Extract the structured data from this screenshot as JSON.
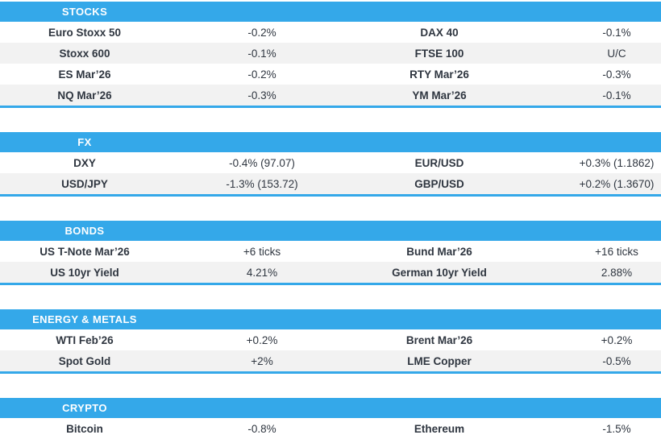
{
  "accent_color": "#34a8e9",
  "row_alt_color": "#f2f2f2",
  "text_color": "#2f3640",
  "sections": [
    {
      "title": "STOCKS",
      "rows": [
        {
          "left": {
            "label": "Euro Stoxx 50",
            "value": "-0.2%"
          },
          "right": {
            "label": "DAX 40",
            "value": "-0.1%"
          }
        },
        {
          "left": {
            "label": "Stoxx 600",
            "value": "-0.1%"
          },
          "right": {
            "label": "FTSE 100",
            "value": "U/C"
          }
        },
        {
          "left": {
            "label": "ES Mar’26",
            "value": "-0.2%"
          },
          "right": {
            "label": "RTY Mar’26",
            "value": "-0.3%"
          }
        },
        {
          "left": {
            "label": "NQ Mar’26",
            "value": "-0.3%"
          },
          "right": {
            "label": "YM Mar’26",
            "value": "-0.1%"
          }
        }
      ]
    },
    {
      "title": "FX",
      "rows": [
        {
          "left": {
            "label": "DXY",
            "value": "-0.4% (97.07)"
          },
          "right": {
            "label": "EUR/USD",
            "value": "+0.3% (1.1862)"
          }
        },
        {
          "left": {
            "label": "USD/JPY",
            "value": "-1.3% (153.72)"
          },
          "right": {
            "label": "GBP/USD",
            "value": "+0.2% (1.3670)"
          }
        }
      ]
    },
    {
      "title": "BONDS",
      "rows": [
        {
          "left": {
            "label": "US T-Note Mar’26",
            "value": "+6 ticks"
          },
          "right": {
            "label": "Bund Mar’26",
            "value": "+16 ticks"
          }
        },
        {
          "left": {
            "label": "US 10yr Yield",
            "value": "4.21%"
          },
          "right": {
            "label": "German 10yr Yield",
            "value": "2.88%"
          }
        }
      ]
    },
    {
      "title": "ENERGY & METALS",
      "rows": [
        {
          "left": {
            "label": "WTI Feb’26",
            "value": "+0.2%"
          },
          "right": {
            "label": "Brent Mar’26",
            "value": "+0.2%"
          }
        },
        {
          "left": {
            "label": "Spot Gold",
            "value": "+2%"
          },
          "right": {
            "label": "LME Copper",
            "value": "-0.5%"
          }
        }
      ]
    },
    {
      "title": "CRYPTO",
      "rows": [
        {
          "left": {
            "label": "Bitcoin",
            "value": "-0.8%"
          },
          "right": {
            "label": "Ethereum",
            "value": "-1.5%"
          }
        }
      ]
    }
  ]
}
